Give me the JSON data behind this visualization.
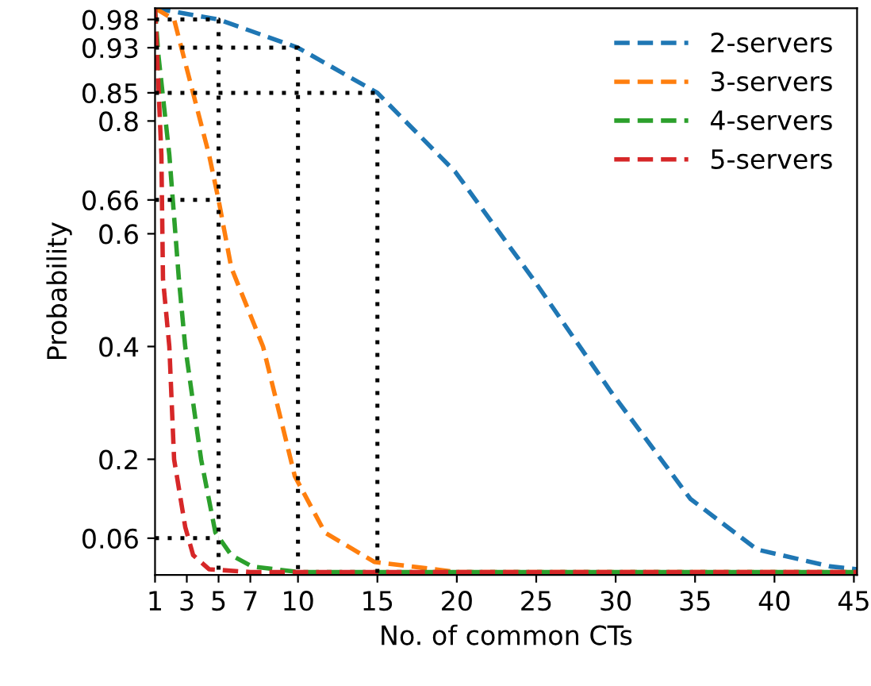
{
  "chart_data": {
    "type": "line",
    "xlabel": "No. of common CTs",
    "ylabel": "Probability",
    "xlim": [
      1,
      45.2
    ],
    "ylim": [
      -0.005,
      1.0
    ],
    "xticks": [
      1,
      3,
      5,
      7,
      10,
      15,
      20,
      25,
      30,
      35,
      40,
      45
    ],
    "yticks": [
      0.06,
      0.2,
      0.4,
      0.6,
      0.66,
      0.8,
      0.85,
      0.93,
      0.98
    ],
    "legend": "top right",
    "grid": false,
    "line_style": "dashed",
    "marker": "none",
    "series": [
      {
        "name": "2-servers",
        "color": "#1f77b4",
        "x": [
          1,
          5,
          10,
          15,
          19.9,
          24.8,
          29.7,
          34.7,
          38.9,
          43.5,
          45.2
        ],
        "values": [
          1.0,
          0.98,
          0.93,
          0.85,
          0.71,
          0.52,
          0.32,
          0.13,
          0.04,
          0.01,
          0.005
        ]
      },
      {
        "name": "3-servers",
        "color": "#ff7f0e",
        "x": [
          1,
          2.2,
          4.4,
          5,
          5.8,
          7.8,
          9.8,
          11.7,
          14.8,
          20,
          45.2
        ],
        "values": [
          1.0,
          0.98,
          0.74,
          0.66,
          0.54,
          0.4,
          0.17,
          0.07,
          0.018,
          0.0,
          0.0
        ]
      },
      {
        "name": "4-servers",
        "color": "#2ca02c",
        "x": [
          1,
          1.2,
          1.9,
          2.5,
          2.9,
          3.9,
          4.8,
          5.8,
          7.1,
          10,
          45.2
        ],
        "values": [
          1.0,
          0.92,
          0.74,
          0.52,
          0.4,
          0.2,
          0.07,
          0.03,
          0.01,
          0.0,
          0.0
        ]
      },
      {
        "name": "5-servers",
        "color": "#d62728",
        "x": [
          1,
          1.4,
          1.5,
          1.9,
          2.2,
          2.9,
          3.4,
          4.4,
          7,
          45.2
        ],
        "values": [
          1.0,
          0.74,
          0.52,
          0.4,
          0.2,
          0.08,
          0.03,
          0.005,
          0.0,
          0.0
        ]
      },
      {
        "color": "#000000",
        "line_style": "dotted",
        "x": [
          1,
          5,
          5
        ],
        "values": [
          0.98,
          0.98,
          -0.005
        ]
      },
      {
        "color": "#000000",
        "line_style": "dotted",
        "x": [
          1,
          10,
          10
        ],
        "values": [
          0.93,
          0.93,
          -0.005
        ]
      },
      {
        "color": "#000000",
        "line_style": "dotted",
        "x": [
          1,
          15,
          15
        ],
        "values": [
          0.85,
          0.85,
          -0.005
        ]
      },
      {
        "color": "#000000",
        "line_style": "dotted",
        "x": [
          1,
          5
        ],
        "values": [
          0.66,
          0.66
        ]
      },
      {
        "color": "#000000",
        "line_style": "dotted",
        "x": [
          1,
          5
        ],
        "values": [
          0.06,
          0.06
        ]
      }
    ]
  }
}
